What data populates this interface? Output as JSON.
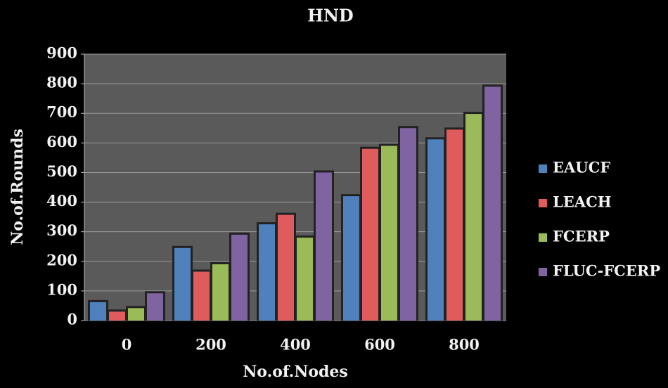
{
  "chart_data": {
    "type": "bar",
    "title": "HND",
    "x_label": "No.of.Nodes",
    "y_label": "No.of.Rounds",
    "categories": [
      "0",
      "200",
      "400",
      "600",
      "800"
    ],
    "series": [
      {
        "name": "EAUCF",
        "color": "#4f81bd",
        "values": [
          62,
          245,
          325,
          420,
          612
        ]
      },
      {
        "name": "LEACH",
        "color": "#e05c5c",
        "values": [
          30,
          165,
          357,
          580,
          645
        ]
      },
      {
        "name": "FCERP",
        "color": "#9bbb59",
        "values": [
          42,
          190,
          280,
          590,
          698
        ]
      },
      {
        "name": "FLUC-FCERP",
        "color": "#8064a2",
        "values": [
          92,
          290,
          500,
          650,
          790
        ]
      }
    ],
    "ylim": [
      0,
      900
    ],
    "yticks": [
      0,
      100,
      200,
      300,
      400,
      500,
      600,
      700,
      800,
      900
    ],
    "grid": true,
    "legend": "right"
  }
}
